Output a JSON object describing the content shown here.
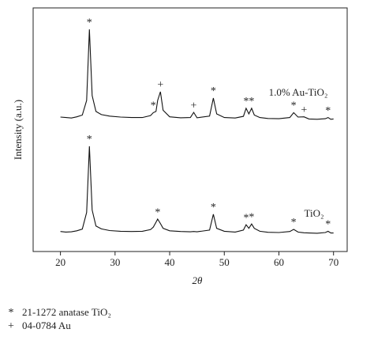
{
  "chart_data": {
    "type": "line",
    "x_label": "2θ",
    "y_label": "Intensity (a.u.)",
    "x": [
      20,
      21,
      22,
      23,
      24,
      24.8,
      25.3,
      25.8,
      26.5,
      27.5,
      29,
      31,
      33,
      35,
      36.5,
      37,
      37.5,
      37.8,
      38.3,
      38.8,
      40,
      42,
      43.8,
      44.4,
      45,
      47.3,
      48,
      48.6,
      50,
      52,
      53.5,
      54,
      54.5,
      55,
      55.5,
      56.5,
      58,
      60,
      62,
      62.7,
      63.5,
      64.6,
      65.5,
      67,
      68.5,
      69,
      69.5,
      70
    ],
    "series": [
      {
        "name": "1.0% Au-TiO₂",
        "color": "#111",
        "values": [
          55.2,
          55,
          54.8,
          55.3,
          56,
          62,
          91.2,
          64,
          57.5,
          56.2,
          55.6,
          55.2,
          55,
          55,
          55.8,
          57,
          57.5,
          62,
          65.6,
          58,
          55.3,
          54.9,
          55,
          57.1,
          54.9,
          55.6,
          63,
          56.5,
          55,
          54.8,
          55.5,
          58.8,
          56.5,
          58.8,
          56,
          55,
          54.6,
          54.5,
          55,
          57,
          55.2,
          55.3,
          54.4,
          54.3,
          54.5,
          55,
          54.3,
          54.4
        ],
        "markers": [
          {
            "label": "*",
            "x": 25.3
          },
          {
            "label": "*",
            "x": 37
          },
          {
            "label": "+",
            "x": 38.3
          },
          {
            "label": "+",
            "x": 44.4
          },
          {
            "label": "*",
            "x": 48
          },
          {
            "label": "*",
            "x": 54
          },
          {
            "label": "*",
            "x": 55
          },
          {
            "label": "*",
            "x": 62.7
          },
          {
            "label": "+",
            "x": 64.6
          },
          {
            "label": "*",
            "x": 69
          }
        ]
      },
      {
        "name": "TiO₂",
        "color": "#111",
        "values": [
          8.2,
          8,
          8.1,
          8.5,
          9.2,
          16,
          43.2,
          17,
          10.5,
          9.3,
          8.6,
          8.3,
          8.2,
          8.3,
          9,
          10,
          12,
          13.3,
          11.5,
          9.5,
          8.5,
          8.2,
          8.1,
          8.2,
          8.1,
          8.8,
          15.3,
          9.5,
          8.3,
          8,
          8.8,
          11,
          9.5,
          11.3,
          9.5,
          8.3,
          7.9,
          7.8,
          8.2,
          9.1,
          8,
          7.7,
          7.6,
          7.5,
          7.8,
          8.3,
          7.6,
          7.6
        ],
        "markers": [
          {
            "label": "*",
            "x": 25.3
          },
          {
            "label": "*",
            "x": 37.8
          },
          {
            "label": "*",
            "x": 48
          },
          {
            "label": "*",
            "x": 54
          },
          {
            "label": "*",
            "x": 55
          },
          {
            "label": "*",
            "x": 62.7
          },
          {
            "label": "*",
            "x": 69
          }
        ]
      }
    ],
    "xlim": [
      15,
      72.5
    ],
    "xticks": [
      20,
      30,
      40,
      50,
      60,
      70
    ],
    "ylim": [
      0,
      100
    ],
    "legend": [
      {
        "symbol": "*",
        "label": "21-1272 anatase TiO₂"
      },
      {
        "symbol": "+",
        "label": "04-0784 Au"
      }
    ]
  }
}
